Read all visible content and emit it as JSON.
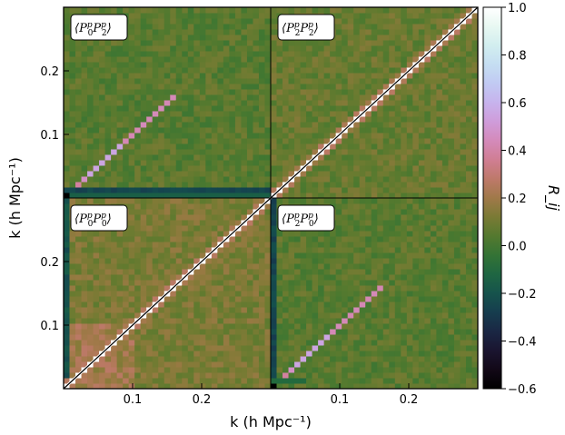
{
  "chart_data": {
    "type": "heatmap",
    "description_values_in_units": "correlation coefficient R_ij",
    "xlabel": "k (h Mpc⁻¹)",
    "ylabel": "k (h Mpc⁻¹)",
    "colorbar_label": "R_ij",
    "colorbar": {
      "range": [
        -0.6,
        1.0
      ],
      "ticks": [
        -0.6,
        -0.4,
        -0.2,
        0.0,
        0.2,
        0.4,
        0.6,
        0.8,
        1.0
      ],
      "tick_labels": [
        "−0.6",
        "−0.4",
        "−0.2",
        "0.0",
        "0.2",
        "0.4",
        "0.6",
        "0.8",
        "1.0"
      ],
      "colormap": "cubehelix"
    },
    "k_range": [
      0.0,
      0.3
    ],
    "bins_per_block": 35,
    "x_ticks": [
      0.1,
      0.2
    ],
    "x_tick_labels": [
      "0.1",
      "0.2"
    ],
    "y_ticks": [
      0.1,
      0.2
    ],
    "y_tick_labels": [
      "0.1",
      "0.2"
    ],
    "grid": false,
    "panels": [
      {
        "id": "P0P2",
        "position": "top-left",
        "label_sub": [
          "0",
          "2"
        ],
        "diagonal": 0.55,
        "background": 0.05,
        "edge_row_value": -0.25,
        "edge_col_value": null
      },
      {
        "id": "P2P2",
        "position": "top-right",
        "label_sub": [
          "2",
          "2"
        ],
        "diagonal": 1.0,
        "background": 0.08,
        "edge_row_value": null,
        "edge_col_value": null
      },
      {
        "id": "P0P0",
        "position": "bottom-left",
        "label_sub": [
          "0",
          "0"
        ],
        "diagonal": 1.0,
        "background": 0.12,
        "edge_row_value": null,
        "edge_col_value": -0.2
      },
      {
        "id": "P2P0",
        "position": "bottom-right",
        "label_sub": [
          "2",
          "0"
        ],
        "diagonal": 0.55,
        "background": 0.05,
        "edge_row_value": null,
        "edge_col_value": -0.25
      }
    ]
  }
}
